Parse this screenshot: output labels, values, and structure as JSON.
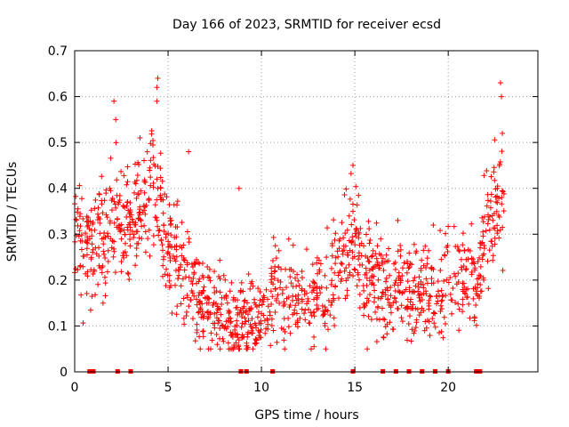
{
  "chart_data": {
    "type": "scatter",
    "title": "Day 166 of 2023, SRMTID for receiver ecsd",
    "xlabel": "GPS time / hours",
    "ylabel": "SRMTID / TECUs",
    "xlim": [
      0,
      24.8
    ],
    "ylim": [
      0,
      0.7
    ],
    "xticks": [
      0,
      5,
      10,
      15,
      20
    ],
    "yticks": [
      0,
      0.1,
      0.2,
      0.3,
      0.4,
      0.5,
      0.6,
      0.7
    ],
    "xtick_labels": [
      "0",
      "5",
      "10",
      "15",
      "20"
    ],
    "ytick_labels": [
      "0",
      "0.1",
      "0.2",
      "0.3",
      "0.4",
      "0.5",
      "0.6",
      "0.7"
    ],
    "grid": true,
    "marker": "+",
    "color": "#ff0000",
    "trend": [
      [
        0.0,
        0.33
      ],
      [
        0.5,
        0.27
      ],
      [
        1.0,
        0.24
      ],
      [
        1.5,
        0.31
      ],
      [
        2.0,
        0.36
      ],
      [
        2.5,
        0.33
      ],
      [
        3.0,
        0.3
      ],
      [
        3.5,
        0.35
      ],
      [
        4.0,
        0.4
      ],
      [
        4.5,
        0.38
      ],
      [
        5.0,
        0.28
      ],
      [
        5.5,
        0.24
      ],
      [
        6.0,
        0.21
      ],
      [
        6.5,
        0.16
      ],
      [
        7.0,
        0.14
      ],
      [
        7.5,
        0.13
      ],
      [
        8.0,
        0.13
      ],
      [
        8.5,
        0.1
      ],
      [
        9.0,
        0.12
      ],
      [
        9.5,
        0.12
      ],
      [
        10.0,
        0.13
      ],
      [
        10.5,
        0.16
      ],
      [
        11.0,
        0.18
      ],
      [
        11.5,
        0.16
      ],
      [
        12.0,
        0.15
      ],
      [
        12.5,
        0.16
      ],
      [
        13.0,
        0.16
      ],
      [
        13.5,
        0.18
      ],
      [
        14.0,
        0.22
      ],
      [
        14.5,
        0.27
      ],
      [
        15.0,
        0.3
      ],
      [
        15.5,
        0.2
      ],
      [
        16.0,
        0.2
      ],
      [
        16.5,
        0.17
      ],
      [
        17.0,
        0.18
      ],
      [
        17.5,
        0.2
      ],
      [
        18.0,
        0.18
      ],
      [
        18.5,
        0.18
      ],
      [
        19.0,
        0.17
      ],
      [
        19.5,
        0.15
      ],
      [
        20.0,
        0.24
      ],
      [
        20.5,
        0.25
      ],
      [
        21.0,
        0.2
      ],
      [
        21.5,
        0.17
      ],
      [
        22.0,
        0.3
      ],
      [
        22.5,
        0.36
      ],
      [
        23.0,
        0.4
      ]
    ],
    "peaks": [
      [
        2.1,
        0.59
      ],
      [
        2.2,
        0.55
      ],
      [
        3.5,
        0.51
      ],
      [
        4.45,
        0.64
      ],
      [
        4.4,
        0.62
      ],
      [
        4.4,
        0.59
      ],
      [
        6.1,
        0.48
      ],
      [
        8.8,
        0.4
      ],
      [
        14.9,
        0.45
      ],
      [
        17.3,
        0.33
      ],
      [
        19.2,
        0.32
      ],
      [
        22.8,
        0.63
      ],
      [
        22.85,
        0.6
      ],
      [
        22.9,
        0.52
      ]
    ],
    "spread": 0.06,
    "points_per_hour": 60,
    "gap_markers_x": [
      0.8,
      1.0,
      2.3,
      3.0,
      8.9,
      9.2,
      10.6,
      14.9,
      16.5,
      17.2,
      17.9,
      18.6,
      19.3,
      20.0,
      21.5,
      21.7
    ]
  }
}
